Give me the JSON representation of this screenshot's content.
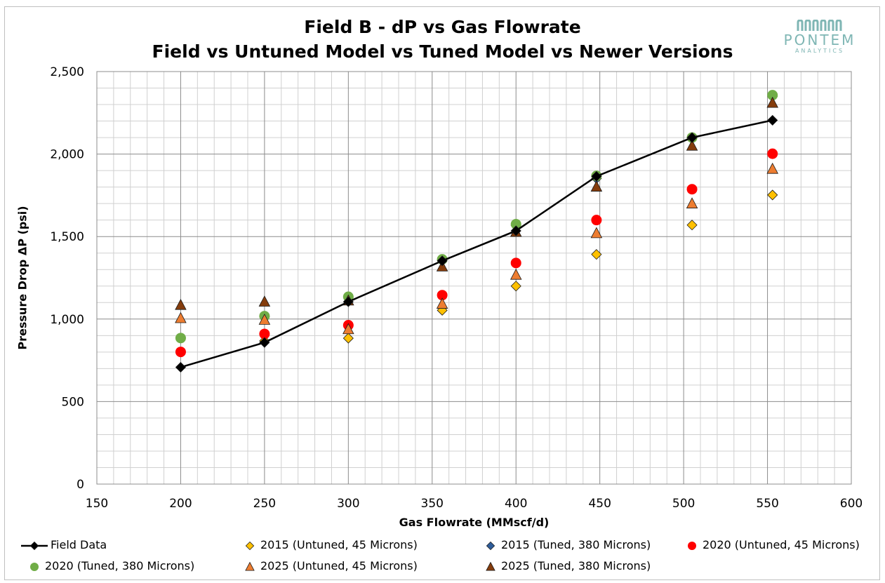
{
  "chart_data": {
    "type": "scatter",
    "title": "Field B - dP vs Gas Flowrate",
    "subtitle": "Field vs Untuned Model vs Tuned Model vs Newer Versions",
    "xlabel": "Gas Flowrate (MMscf/d)",
    "ylabel": "Pressure Drop ΔP (psi)",
    "xlim": [
      150,
      600
    ],
    "ylim": [
      0,
      2500
    ],
    "x_ticks": [
      150,
      200,
      250,
      300,
      350,
      400,
      450,
      500,
      550,
      600
    ],
    "y_ticks": [
      0,
      500,
      1000,
      1500,
      2000,
      2500
    ],
    "x_tick_labels": [
      "150",
      "200",
      "250",
      "300",
      "350",
      "400",
      "450",
      "500",
      "550",
      "600"
    ],
    "y_tick_labels": [
      "0",
      "500",
      "1,000",
      "1,500",
      "2,000",
      "2,500"
    ],
    "grid": true,
    "legend_position": "bottom",
    "series": [
      {
        "name": "Field Data",
        "marker": "diamond",
        "line": true,
        "color": "#000000",
        "x": [
          200,
          250,
          300,
          356,
          400,
          448,
          505,
          553
        ],
        "y": [
          708,
          858,
          1105,
          1353,
          1535,
          1865,
          2100,
          2205
        ]
      },
      {
        "name": "2015 (Untuned, 45 Microns)",
        "marker": "diamond",
        "line": false,
        "color": "#ffc000",
        "x": [
          200,
          250,
          300,
          356,
          400,
          448,
          505,
          553
        ],
        "y": [
          800,
          868,
          884,
          1053,
          1200,
          1392,
          1570,
          1752
        ]
      },
      {
        "name": "2015 (Tuned, 380 Microns)",
        "marker": "diamond",
        "line": false,
        "color": "#2e5d9a",
        "x": [
          200,
          250,
          300,
          356,
          400,
          448,
          505,
          553
        ],
        "y": [
          885,
          1013,
          1132,
          1357,
          1568,
          1852,
          2098,
          2350
        ]
      },
      {
        "name": "2020 (Untuned, 45 Microns)",
        "marker": "circle",
        "line": false,
        "color": "#ff0000",
        "x": [
          200,
          250,
          300,
          356,
          400,
          448,
          505,
          553
        ],
        "y": [
          801,
          910,
          963,
          1145,
          1340,
          1600,
          1787,
          2002
        ]
      },
      {
        "name": "2020 (Tuned, 380 Microns)",
        "marker": "circle",
        "line": false,
        "color": "#70ad47",
        "x": [
          200,
          250,
          300,
          356,
          400,
          448,
          505,
          553
        ],
        "y": [
          885,
          1018,
          1135,
          1362,
          1575,
          1868,
          2100,
          2357
        ]
      },
      {
        "name": "2025 (Untuned, 45 Microns)",
        "marker": "triangle",
        "line": false,
        "color": "#ed7d31",
        "x": [
          200,
          250,
          300,
          356,
          400,
          448,
          505,
          553
        ],
        "y": [
          1005,
          995,
          938,
          1092,
          1268,
          1520,
          1700,
          1910
        ]
      },
      {
        "name": "2025 (Tuned, 380 Microns)",
        "marker": "triangle",
        "line": false,
        "color": "#843c0c",
        "x": [
          200,
          250,
          300,
          356,
          400,
          448,
          505,
          553
        ],
        "y": [
          1085,
          1105,
          1112,
          1318,
          1528,
          1802,
          2050,
          2310
        ]
      }
    ]
  },
  "logo": {
    "word": "PONTEM",
    "sub": "ANALYTICS"
  },
  "colors": {
    "grid_major": "#8c8c8c",
    "grid_minor": "#d0d0d0",
    "logo": "#7fb6b4"
  }
}
